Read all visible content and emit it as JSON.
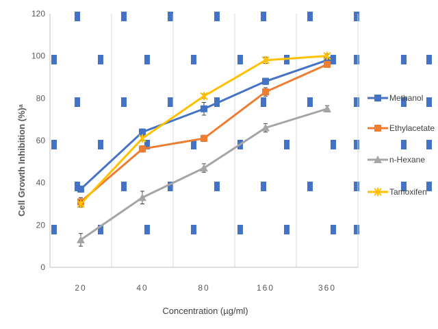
{
  "chart_data": {
    "type": "line",
    "title": "",
    "xlabel": "Concentration (µg/ml)",
    "ylabel": "Cell Growth Inhibition (%)ᵃ",
    "categories": [
      "20",
      "40",
      "80",
      "160",
      "360"
    ],
    "ylim": [
      0,
      120
    ],
    "yticks": [
      0,
      20,
      40,
      60,
      80,
      100,
      120
    ],
    "grid": "vertical",
    "legend_position": "right",
    "series": [
      {
        "name": "Methanol",
        "values": [
          37,
          64,
          75,
          88,
          98
        ],
        "errors": [
          1.5,
          1.5,
          3,
          1.5,
          1
        ],
        "color": "#4472C4",
        "marker": "square"
      },
      {
        "name": "Ethylacetate",
        "values": [
          31,
          56,
          61,
          83,
          96
        ],
        "errors": [
          2,
          1.5,
          1.5,
          2,
          1
        ],
        "color": "#ED7D31",
        "marker": "square"
      },
      {
        "name": "n-Hexane",
        "values": [
          13,
          33,
          47,
          66,
          75
        ],
        "errors": [
          3,
          3,
          2,
          2,
          1.5
        ],
        "color": "#A5A5A5",
        "marker": "triangle"
      },
      {
        "name": "Tamoxifen",
        "values": [
          30,
          61,
          81,
          98,
          100
        ],
        "errors": [
          1.5,
          1,
          1,
          1.5,
          1
        ],
        "color": "#FFC000",
        "marker": "star"
      }
    ],
    "background_pattern_color": "#4472C4"
  }
}
